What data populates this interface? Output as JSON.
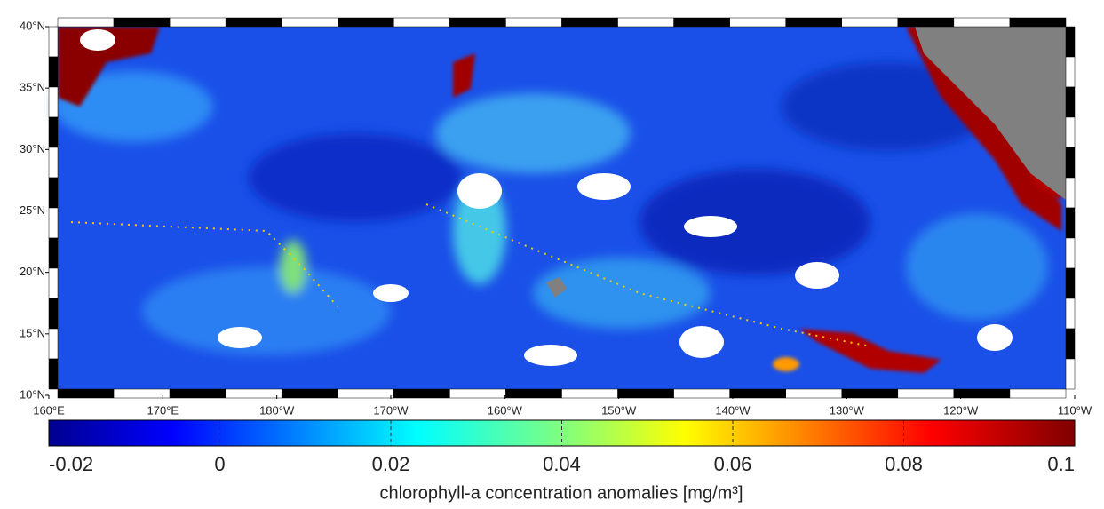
{
  "map": {
    "lat_ticks": [
      {
        "value": 40,
        "label": "40°N"
      },
      {
        "value": 35,
        "label": "35°N"
      },
      {
        "value": 30,
        "label": "30°N"
      },
      {
        "value": 25,
        "label": "25°N"
      },
      {
        "value": 20,
        "label": "20°N"
      },
      {
        "value": 15,
        "label": "15°N"
      },
      {
        "value": 10,
        "label": "10°N"
      }
    ],
    "lon_ticks": [
      {
        "value": 160,
        "label": "160°E"
      },
      {
        "value": 170,
        "label": "170°E"
      },
      {
        "value": 180,
        "label": "180°W"
      },
      {
        "value": -170,
        "label": "170°W"
      },
      {
        "value": -160,
        "label": "160°W"
      },
      {
        "value": -150,
        "label": "150°W"
      },
      {
        "value": -140,
        "label": "140°W"
      },
      {
        "value": -130,
        "label": "130°W"
      },
      {
        "value": -120,
        "label": "120°W"
      },
      {
        "value": -110,
        "label": "110°W"
      }
    ],
    "colorbar": {
      "range": [
        -0.02,
        0.1
      ],
      "ticks": [
        -0.02,
        0,
        0.02,
        0.04,
        0.06,
        0.08,
        0.1
      ],
      "title": "chlorophyll-a concentration anomalies [mg/m³]"
    }
  }
}
